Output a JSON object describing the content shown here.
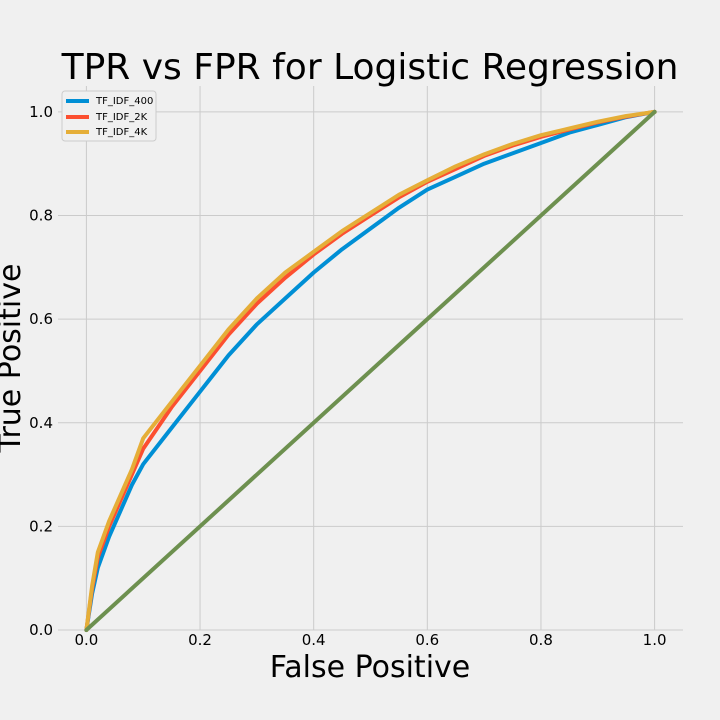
{
  "chart_data": {
    "type": "line",
    "title": "TPR vs FPR for Logistic Regression",
    "xlabel": "False Positive",
    "ylabel": "True Positive",
    "xlim": [
      -0.05,
      1.05
    ],
    "ylim": [
      -0.0,
      1.05
    ],
    "grid": true,
    "legend_position": "top-left",
    "x_ticks": [
      0.0,
      0.2,
      0.4,
      0.6,
      0.8,
      1.0
    ],
    "x_tick_labels": [
      "0.0",
      "0.2",
      "0.4",
      "0.6",
      "0.8",
      "1.0"
    ],
    "y_ticks": [
      0.0,
      0.2,
      0.4,
      0.6,
      0.8,
      1.0
    ],
    "y_tick_labels": [
      "0.0",
      "0.2",
      "0.4",
      "0.6",
      "0.8",
      "1.0"
    ],
    "series": [
      {
        "name": "TF_IDF_400",
        "color": "#008fd5",
        "x": [
          0.0,
          0.01,
          0.02,
          0.04,
          0.06,
          0.08,
          0.1,
          0.15,
          0.2,
          0.25,
          0.3,
          0.35,
          0.4,
          0.45,
          0.5,
          0.55,
          0.6,
          0.65,
          0.7,
          0.75,
          0.8,
          0.85,
          0.9,
          0.95,
          1.0
        ],
        "y": [
          0.0,
          0.07,
          0.12,
          0.18,
          0.23,
          0.28,
          0.32,
          0.39,
          0.46,
          0.53,
          0.59,
          0.64,
          0.69,
          0.735,
          0.775,
          0.815,
          0.85,
          0.875,
          0.9,
          0.92,
          0.94,
          0.96,
          0.975,
          0.99,
          1.0
        ]
      },
      {
        "name": "TF_IDF_2K",
        "color": "#fc4f30",
        "x": [
          0.0,
          0.01,
          0.02,
          0.04,
          0.06,
          0.08,
          0.1,
          0.15,
          0.2,
          0.25,
          0.3,
          0.35,
          0.4,
          0.45,
          0.5,
          0.55,
          0.6,
          0.65,
          0.7,
          0.75,
          0.8,
          0.85,
          0.9,
          0.95,
          1.0
        ],
        "y": [
          0.0,
          0.08,
          0.14,
          0.2,
          0.25,
          0.3,
          0.35,
          0.43,
          0.5,
          0.57,
          0.63,
          0.68,
          0.725,
          0.765,
          0.8,
          0.835,
          0.865,
          0.89,
          0.915,
          0.935,
          0.952,
          0.966,
          0.98,
          0.991,
          1.0
        ]
      },
      {
        "name": "TF_IDF_4K",
        "color": "#e5ae38",
        "x": [
          0.0,
          0.01,
          0.02,
          0.04,
          0.06,
          0.08,
          0.1,
          0.15,
          0.2,
          0.25,
          0.3,
          0.35,
          0.4,
          0.45,
          0.5,
          0.55,
          0.6,
          0.65,
          0.7,
          0.75,
          0.8,
          0.85,
          0.9,
          0.95,
          1.0
        ],
        "y": [
          0.0,
          0.085,
          0.15,
          0.21,
          0.26,
          0.31,
          0.37,
          0.44,
          0.51,
          0.58,
          0.64,
          0.69,
          0.73,
          0.77,
          0.805,
          0.84,
          0.868,
          0.895,
          0.918,
          0.938,
          0.955,
          0.968,
          0.981,
          0.992,
          1.0
        ]
      },
      {
        "name": "",
        "color": "#6d904f",
        "x": [
          0.0,
          1.0
        ],
        "y": [
          0.0,
          1.0
        ]
      }
    ]
  }
}
